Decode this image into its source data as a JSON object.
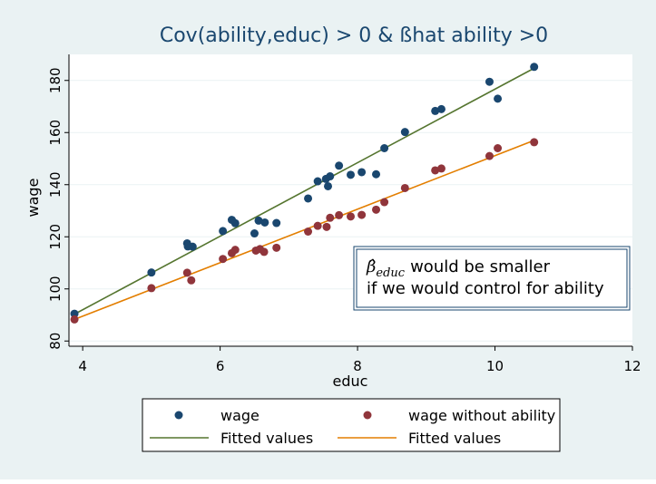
{
  "chart_data": {
    "type": "scatter",
    "title": "Cov(ability,educ) > 0 & ßhat ability >0",
    "xlabel": "educ",
    "ylabel": "wage",
    "xlim": [
      3.8,
      12
    ],
    "ylim": [
      78,
      190
    ],
    "xticks": [
      "4",
      "6",
      "8",
      "10",
      "12"
    ],
    "yticks": [
      "80",
      "100",
      "120",
      "140",
      "160",
      "180"
    ],
    "grid": true,
    "legend_position": "bottom",
    "series": [
      {
        "name": "wage",
        "kind": "scatter",
        "color": "#1a476f",
        "marker": "circle",
        "points": [
          [
            3.88,
            90.5
          ],
          [
            5.0,
            106.3
          ],
          [
            5.52,
            117.5
          ],
          [
            5.53,
            116.3
          ],
          [
            5.6,
            116.2
          ],
          [
            6.04,
            122.2
          ],
          [
            6.17,
            126.5
          ],
          [
            6.22,
            125.2
          ],
          [
            6.5,
            121.3
          ],
          [
            6.56,
            126.2
          ],
          [
            6.65,
            125.5
          ],
          [
            6.82,
            125.3
          ],
          [
            7.28,
            134.7
          ],
          [
            7.42,
            141.3
          ],
          [
            7.54,
            142.2
          ],
          [
            7.57,
            139.4
          ],
          [
            7.6,
            143.2
          ],
          [
            7.73,
            147.3
          ],
          [
            7.9,
            143.8
          ],
          [
            8.06,
            144.8
          ],
          [
            8.27,
            144.0
          ],
          [
            8.39,
            154.0
          ],
          [
            8.69,
            160.2
          ],
          [
            9.13,
            168.3
          ],
          [
            9.22,
            169.0
          ],
          [
            9.92,
            179.5
          ],
          [
            10.04,
            173.0
          ],
          [
            10.57,
            185.2
          ]
        ]
      },
      {
        "name": "wage without ability",
        "kind": "scatter",
        "color": "#90353b",
        "marker": "circle",
        "points": [
          [
            3.88,
            88.3
          ],
          [
            5.0,
            100.3
          ],
          [
            5.52,
            106.2
          ],
          [
            5.58,
            103.3
          ],
          [
            6.04,
            111.5
          ],
          [
            6.17,
            113.7
          ],
          [
            6.22,
            115.0
          ],
          [
            6.52,
            114.7
          ],
          [
            6.58,
            115.3
          ],
          [
            6.64,
            114.2
          ],
          [
            6.82,
            115.8
          ],
          [
            7.28,
            122.0
          ],
          [
            7.42,
            124.2
          ],
          [
            7.55,
            123.8
          ],
          [
            7.6,
            127.3
          ],
          [
            7.73,
            128.3
          ],
          [
            7.9,
            127.8
          ],
          [
            8.06,
            128.4
          ],
          [
            8.27,
            130.4
          ],
          [
            8.39,
            133.3
          ],
          [
            8.69,
            138.7
          ],
          [
            9.13,
            145.5
          ],
          [
            9.22,
            146.2
          ],
          [
            9.92,
            151.0
          ],
          [
            10.04,
            154.0
          ],
          [
            10.57,
            156.3
          ]
        ]
      },
      {
        "name": "Fitted values",
        "kind": "line",
        "color": "#55752f",
        "points": [
          [
            3.88,
            90.3
          ],
          [
            10.57,
            184.7
          ]
        ]
      },
      {
        "name": "Fitted values",
        "kind": "line",
        "color": "#e37e00",
        "points": [
          [
            3.88,
            88.3
          ],
          [
            10.57,
            157.0
          ]
        ]
      }
    ],
    "annotation": {
      "line1_symbol": "β̂",
      "line1_subscript": "educ",
      "line1_text": "would be smaller",
      "line2_text": "if we would control for ability"
    }
  },
  "legend": {
    "items": [
      "wage",
      "wage without ability",
      "Fitted values",
      "Fitted values"
    ]
  },
  "colors": {
    "background": "#eaf2f3",
    "plot_area": "#ffffff",
    "grid": "#eaf2f3",
    "annotation_border": "#1a476f"
  }
}
